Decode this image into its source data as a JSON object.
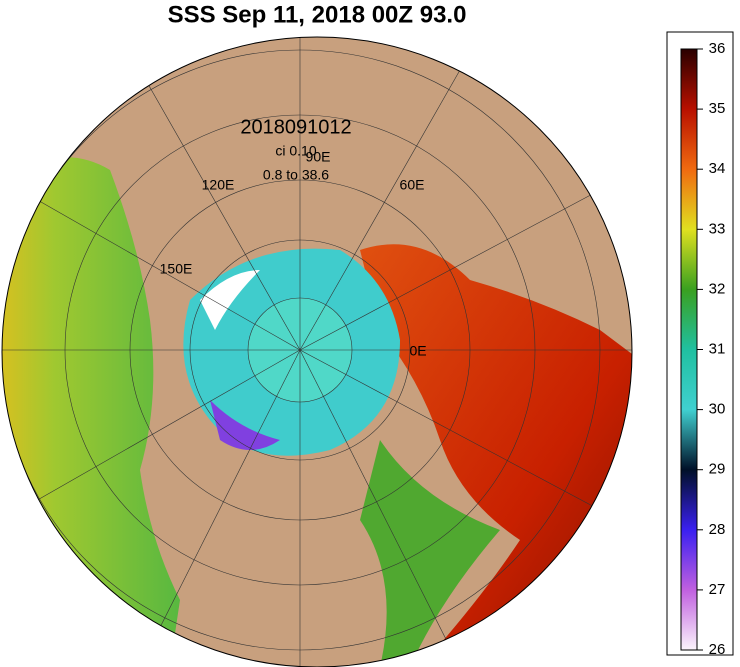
{
  "header": {
    "title": "SSS Sep 11, 2018 00Z 93.0"
  },
  "map": {
    "annotations": [
      "2018091012",
      "ci 0.10",
      "0.8 to 38.6"
    ],
    "longitude_labels": [
      "90E",
      "120E",
      "60E",
      "150E",
      "0E"
    ]
  },
  "colorbar": {
    "range": [
      26,
      36
    ],
    "ticks": [
      26,
      27,
      28,
      29,
      30,
      31,
      32,
      33,
      34,
      35,
      36
    ]
  }
}
